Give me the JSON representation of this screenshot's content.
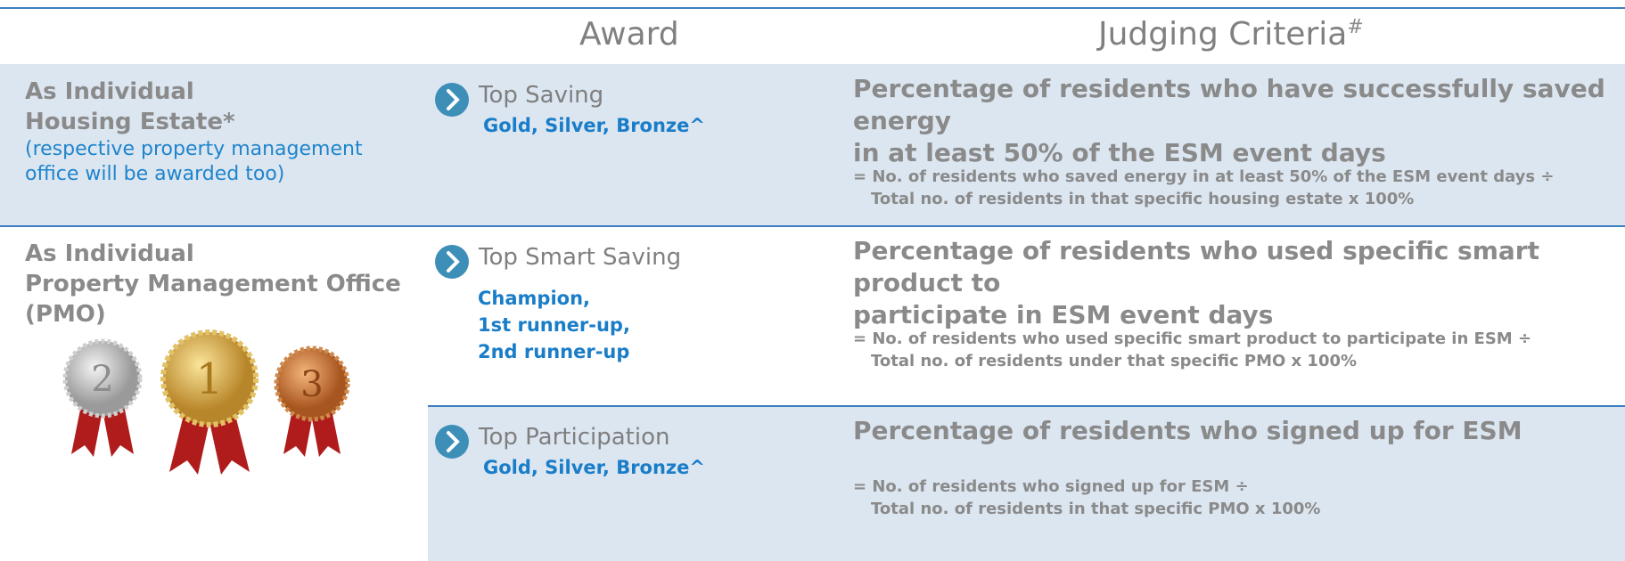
{
  "header": {
    "award": "Award",
    "criteria": "Judging Criteria",
    "criteria_mark": "#"
  },
  "rows": [
    {
      "category": [
        "As Individual",
        "Housing Estate*"
      ],
      "note": [
        "(respective property management",
        "office will be awarded too)"
      ],
      "awards": [
        {
          "name": "Top Saving",
          "prizes": [
            "Gold, Silver, Bronze^"
          ],
          "criteria_title": [
            "Percentage of residents who have successfully saved energy",
            "in at least 50% of the ESM event days"
          ],
          "formula": [
            "= No. of residents who saved energy in at least 50% of the ESM event days ÷",
            "Total no. of residents in that specific housing estate x 100%"
          ]
        }
      ]
    },
    {
      "category": [
        "As Individual",
        "Property Management Office",
        "(PMO)"
      ],
      "medals": [
        "2",
        "1",
        "3"
      ],
      "awards": [
        {
          "name": "Top Smart Saving",
          "prizes": [
            "Champion,",
            "1st runner-up,",
            "2nd runner-up"
          ],
          "criteria_title": [
            "Percentage of residents who used specific smart product to",
            "participate in ESM event days"
          ],
          "formula": [
            "= No. of residents who used specific smart product to participate in ESM ÷",
            "Total no. of residents under that specific PMO x 100%"
          ]
        },
        {
          "name": "Top Participation",
          "prizes": [
            "Gold, Silver, Bronze^"
          ],
          "criteria_title": [
            "Percentage of residents who signed up for ESM"
          ],
          "formula": [
            "= No. of residents who signed up for ESM ÷",
            "Total no. of residents in that specific PMO x 100%"
          ]
        }
      ]
    }
  ]
}
